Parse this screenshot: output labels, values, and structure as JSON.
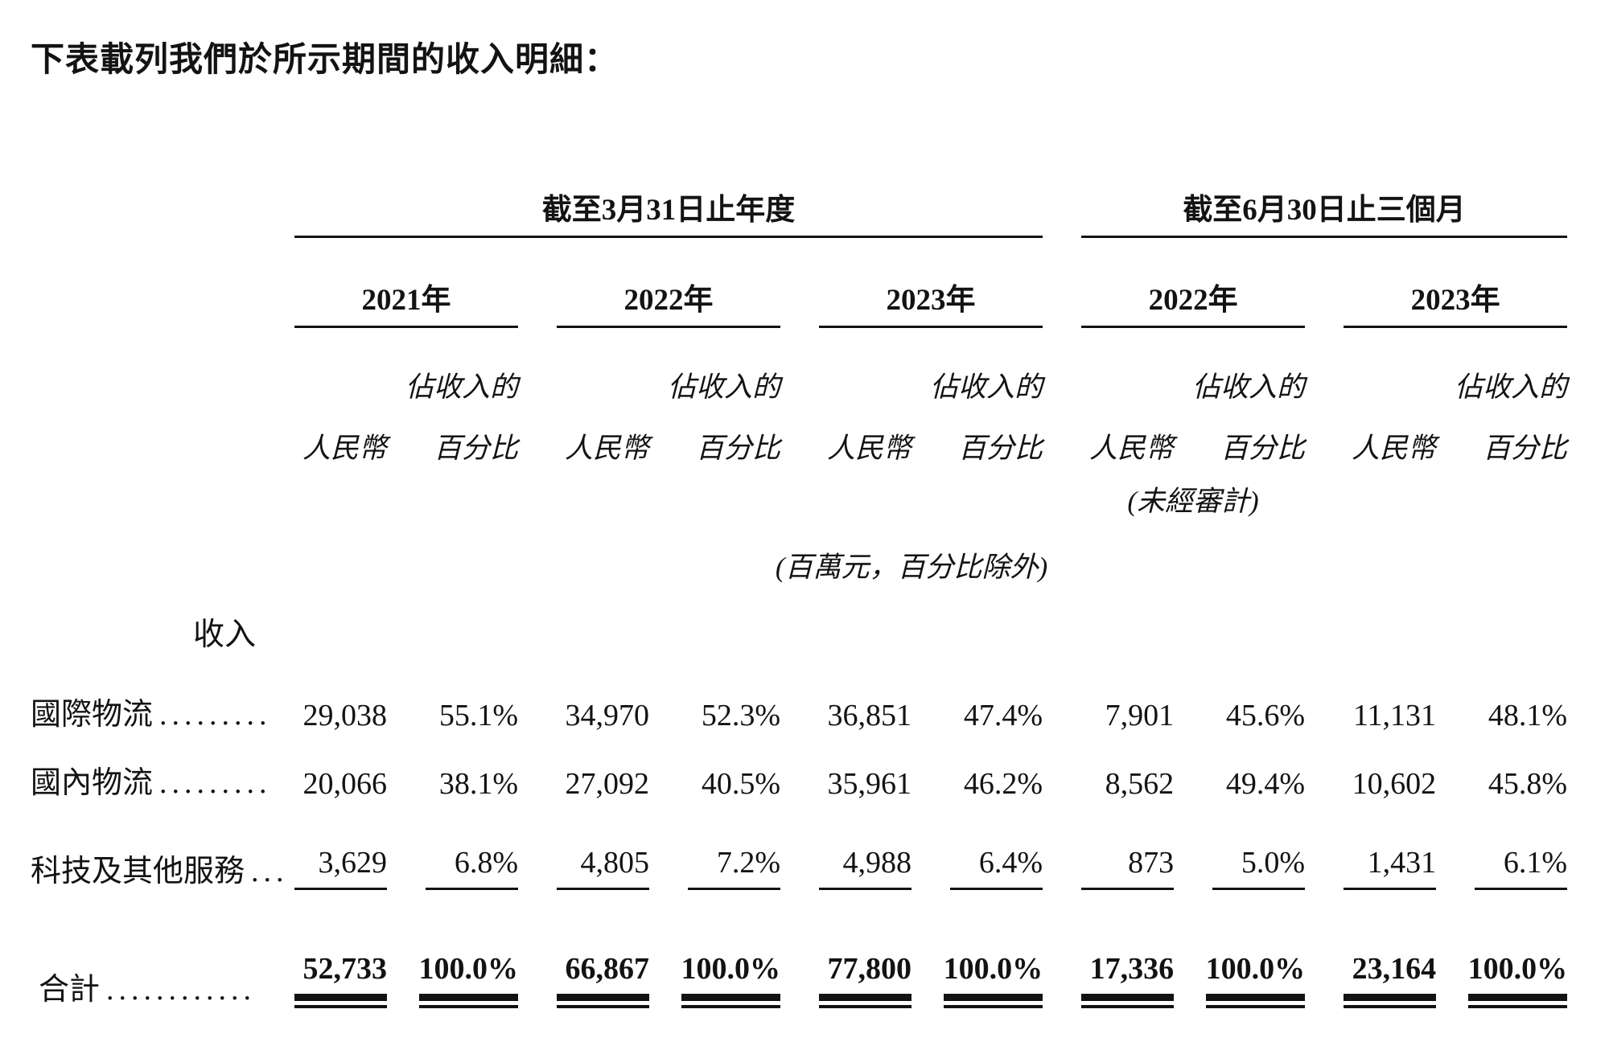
{
  "colors": {
    "text": "#131313",
    "background": "#ffffff"
  },
  "page": {
    "intro": "下表載列我們於所示期間的收入明細："
  },
  "table": {
    "groups": [
      {
        "label": "截至3月31日止年度",
        "years": [
          "2021年",
          "2022年",
          "2023年"
        ]
      },
      {
        "label": "截至6月30日止三個月",
        "years": [
          "2022年",
          "2023年"
        ]
      }
    ],
    "col_headers": {
      "pct_top": "佔收入的",
      "rmb": "人民幣",
      "pct_bottom": "百分比"
    },
    "notes": {
      "unaudited": "(未經審計)",
      "units": "(百萬元，百分比除外)"
    },
    "section_header": "收入",
    "rows": [
      {
        "label": "國際物流",
        "dots": ".........",
        "values": [
          "29,038",
          "55.1%",
          "34,970",
          "52.3%",
          "36,851",
          "47.4%",
          "7,901",
          "45.6%",
          "11,131",
          "48.1%"
        ]
      },
      {
        "label": "國內物流",
        "dots": ".........",
        "values": [
          "20,066",
          "38.1%",
          "27,092",
          "40.5%",
          "35,961",
          "46.2%",
          "8,562",
          "49.4%",
          "10,602",
          "45.8%"
        ]
      },
      {
        "label": "科技及其他服務",
        "dots": "...",
        "values": [
          "3,629",
          "6.8%",
          "4,805",
          "7.2%",
          "4,988",
          "6.4%",
          "873",
          "5.0%",
          "1,431",
          "6.1%"
        ]
      }
    ],
    "total_row": {
      "label": "合計",
      "dots": "............",
      "values": [
        "52,733",
        "100.0%",
        "66,867",
        "100.0%",
        "77,800",
        "100.0%",
        "17,336",
        "100.0%",
        "23,164",
        "100.0%"
      ]
    }
  }
}
